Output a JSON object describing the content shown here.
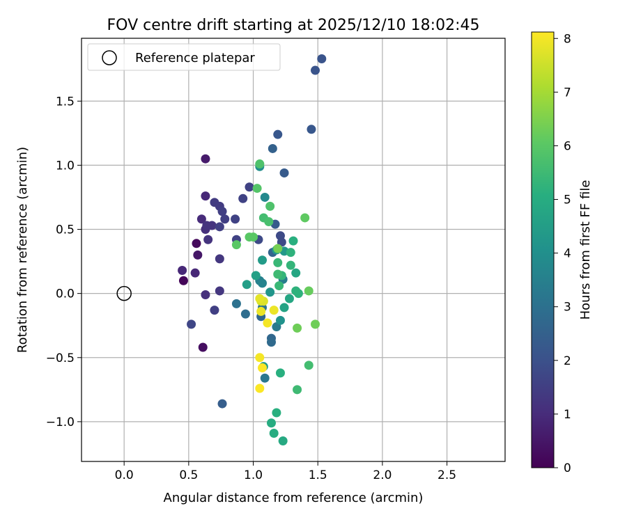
{
  "chart_data": {
    "type": "scatter",
    "title": "FOV centre drift starting at 2025/12/10 18:02:45",
    "xlabel": "Angular distance from reference (arcmin)",
    "ylabel": "Rotation from reference (arcmin)",
    "colorbar_label": "Hours from first FF file",
    "colormap": "viridis",
    "xlim": [
      -0.33,
      2.95
    ],
    "ylim": [
      -1.31,
      1.99
    ],
    "clim": [
      0,
      8.12
    ],
    "xticks": [
      0.0,
      0.5,
      1.0,
      1.5,
      2.0,
      2.5
    ],
    "xtick_labels": [
      "0.0",
      "0.5",
      "1.0",
      "1.5",
      "2.0",
      "2.5"
    ],
    "yticks": [
      -1.0,
      -0.5,
      0.0,
      0.5,
      1.0,
      1.5
    ],
    "ytick_labels": [
      "−1.0",
      "−0.5",
      "0.0",
      "0.5",
      "1.0",
      "1.5"
    ],
    "cticks": [
      0,
      1,
      2,
      3,
      4,
      5,
      6,
      7,
      8
    ],
    "ctick_labels": [
      "0",
      "1",
      "2",
      "3",
      "4",
      "5",
      "6",
      "7",
      "8"
    ],
    "grid": true,
    "legend": {
      "position": "top-left",
      "label": "Reference platepar"
    },
    "reference_point": {
      "x": 0.0,
      "y": 0.0
    },
    "points": [
      {
        "x": 0.46,
        "y": 0.1,
        "c": 0.1
      },
      {
        "x": 0.56,
        "y": 0.39,
        "c": 0.2
      },
      {
        "x": 0.61,
        "y": -0.42,
        "c": 0.3
      },
      {
        "x": 0.57,
        "y": 0.3,
        "c": 0.5
      },
      {
        "x": 0.63,
        "y": 1.05,
        "c": 0.6
      },
      {
        "x": 0.45,
        "y": 0.18,
        "c": 0.9
      },
      {
        "x": 0.55,
        "y": 0.16,
        "c": 0.9
      },
      {
        "x": 0.63,
        "y": 0.76,
        "c": 0.9
      },
      {
        "x": 0.6,
        "y": 0.58,
        "c": 1.0
      },
      {
        "x": 0.63,
        "y": 0.5,
        "c": 1.1
      },
      {
        "x": 0.63,
        "y": -0.01,
        "c": 1.1
      },
      {
        "x": 0.68,
        "y": 0.53,
        "c": 1.2
      },
      {
        "x": 0.65,
        "y": 0.42,
        "c": 1.2
      },
      {
        "x": 0.64,
        "y": 0.53,
        "c": 1.2
      },
      {
        "x": 0.74,
        "y": 0.27,
        "c": 1.3
      },
      {
        "x": 0.74,
        "y": 0.02,
        "c": 1.3
      },
      {
        "x": 0.7,
        "y": 0.71,
        "c": 1.4
      },
      {
        "x": 0.74,
        "y": 0.68,
        "c": 1.4
      },
      {
        "x": 0.76,
        "y": 0.64,
        "c": 1.5
      },
      {
        "x": 0.78,
        "y": 0.58,
        "c": 1.5
      },
      {
        "x": 0.74,
        "y": 0.52,
        "c": 1.5
      },
      {
        "x": 0.7,
        "y": -0.13,
        "c": 1.5
      },
      {
        "x": 0.86,
        "y": 0.58,
        "c": 1.6
      },
      {
        "x": 0.87,
        "y": 0.42,
        "c": 1.6
      },
      {
        "x": 0.92,
        "y": 0.74,
        "c": 1.6
      },
      {
        "x": 0.97,
        "y": 0.83,
        "c": 1.6
      },
      {
        "x": 0.52,
        "y": -0.24,
        "c": 1.7
      },
      {
        "x": 1.04,
        "y": 0.42,
        "c": 1.8
      },
      {
        "x": 1.21,
        "y": 0.45,
        "c": 1.8
      },
      {
        "x": 1.22,
        "y": 0.4,
        "c": 1.8
      },
      {
        "x": 1.48,
        "y": 1.74,
        "c": 2.1
      },
      {
        "x": 1.53,
        "y": 1.83,
        "c": 2.1
      },
      {
        "x": 1.45,
        "y": 1.28,
        "c": 2.2
      },
      {
        "x": 1.19,
        "y": 1.24,
        "c": 2.2
      },
      {
        "x": 1.24,
        "y": 0.94,
        "c": 2.3
      },
      {
        "x": 1.17,
        "y": 0.54,
        "c": 2.3
      },
      {
        "x": 0.76,
        "y": -0.86,
        "c": 2.4
      },
      {
        "x": 1.15,
        "y": 1.13,
        "c": 2.5
      },
      {
        "x": 1.15,
        "y": 0.32,
        "c": 2.6
      },
      {
        "x": 1.06,
        "y": -0.18,
        "c": 2.7
      },
      {
        "x": 1.14,
        "y": -0.35,
        "c": 2.7
      },
      {
        "x": 1.14,
        "y": -0.38,
        "c": 2.8
      },
      {
        "x": 0.94,
        "y": -0.16,
        "c": 2.9
      },
      {
        "x": 0.87,
        "y": -0.08,
        "c": 3.0
      },
      {
        "x": 1.07,
        "y": -0.11,
        "c": 3.1
      },
      {
        "x": 1.09,
        "y": -0.66,
        "c": 3.2
      },
      {
        "x": 1.18,
        "y": -0.26,
        "c": 3.3
      },
      {
        "x": 1.23,
        "y": 0.11,
        "c": 3.4
      },
      {
        "x": 1.05,
        "y": 0.1,
        "c": 3.5
      },
      {
        "x": 1.07,
        "y": 0.08,
        "c": 3.6
      },
      {
        "x": 1.09,
        "y": 0.75,
        "c": 3.8
      },
      {
        "x": 1.05,
        "y": 0.99,
        "c": 4.0
      },
      {
        "x": 1.21,
        "y": -0.21,
        "c": 4.1
      },
      {
        "x": 1.13,
        "y": 0.01,
        "c": 4.2
      },
      {
        "x": 1.18,
        "y": 0.34,
        "c": 4.3
      },
      {
        "x": 1.24,
        "y": 0.33,
        "c": 4.3
      },
      {
        "x": 1.08,
        "y": -0.57,
        "c": 4.4
      },
      {
        "x": 1.07,
        "y": 0.26,
        "c": 4.4
      },
      {
        "x": 0.95,
        "y": 0.07,
        "c": 4.5
      },
      {
        "x": 1.02,
        "y": 0.14,
        "c": 4.6
      },
      {
        "x": 1.24,
        "y": -0.11,
        "c": 4.7
      },
      {
        "x": 1.28,
        "y": -0.04,
        "c": 4.8
      },
      {
        "x": 1.33,
        "y": 0.16,
        "c": 4.8
      },
      {
        "x": 1.23,
        "y": -1.15,
        "c": 4.9
      },
      {
        "x": 1.16,
        "y": -1.09,
        "c": 5.0
      },
      {
        "x": 1.14,
        "y": -1.01,
        "c": 5.0
      },
      {
        "x": 1.18,
        "y": -0.93,
        "c": 5.1
      },
      {
        "x": 1.21,
        "y": -0.62,
        "c": 5.1
      },
      {
        "x": 1.31,
        "y": 0.41,
        "c": 5.1
      },
      {
        "x": 1.29,
        "y": 0.32,
        "c": 5.2
      },
      {
        "x": 1.35,
        "y": 0.0,
        "c": 5.2
      },
      {
        "x": 1.33,
        "y": 0.02,
        "c": 5.2
      },
      {
        "x": 1.29,
        "y": 0.22,
        "c": 5.3
      },
      {
        "x": 1.22,
        "y": 0.14,
        "c": 5.3
      },
      {
        "x": 1.19,
        "y": 0.24,
        "c": 5.4
      },
      {
        "x": 1.2,
        "y": 0.06,
        "c": 5.4
      },
      {
        "x": 1.19,
        "y": 0.15,
        "c": 5.5
      },
      {
        "x": 1.34,
        "y": -0.75,
        "c": 5.5
      },
      {
        "x": 1.43,
        "y": -0.56,
        "c": 5.6
      },
      {
        "x": 1.08,
        "y": 0.59,
        "c": 5.6
      },
      {
        "x": 1.12,
        "y": 0.56,
        "c": 5.7
      },
      {
        "x": 1.13,
        "y": 0.68,
        "c": 5.8
      },
      {
        "x": 1.05,
        "y": 1.01,
        "c": 5.8
      },
      {
        "x": 1.03,
        "y": 0.82,
        "c": 5.9
      },
      {
        "x": 0.97,
        "y": 0.44,
        "c": 6.0
      },
      {
        "x": 1.0,
        "y": 0.44,
        "c": 6.0
      },
      {
        "x": 0.87,
        "y": 0.38,
        "c": 6.0
      },
      {
        "x": 1.4,
        "y": 0.59,
        "c": 6.1
      },
      {
        "x": 1.43,
        "y": 0.02,
        "c": 6.2
      },
      {
        "x": 1.34,
        "y": -0.27,
        "c": 6.3
      },
      {
        "x": 1.48,
        "y": -0.24,
        "c": 6.3
      },
      {
        "x": 1.19,
        "y": 0.35,
        "c": 6.4
      },
      {
        "x": 1.06,
        "y": -0.06,
        "c": 7.6
      },
      {
        "x": 1.08,
        "y": -0.06,
        "c": 7.7
      },
      {
        "x": 1.05,
        "y": -0.04,
        "c": 7.8
      },
      {
        "x": 1.16,
        "y": -0.13,
        "c": 7.9
      },
      {
        "x": 1.06,
        "y": -0.14,
        "c": 7.9
      },
      {
        "x": 1.11,
        "y": -0.23,
        "c": 8.0
      },
      {
        "x": 1.05,
        "y": -0.5,
        "c": 8.0
      },
      {
        "x": 1.07,
        "y": -0.58,
        "c": 8.1
      },
      {
        "x": 1.05,
        "y": -0.74,
        "c": 8.1
      }
    ]
  }
}
